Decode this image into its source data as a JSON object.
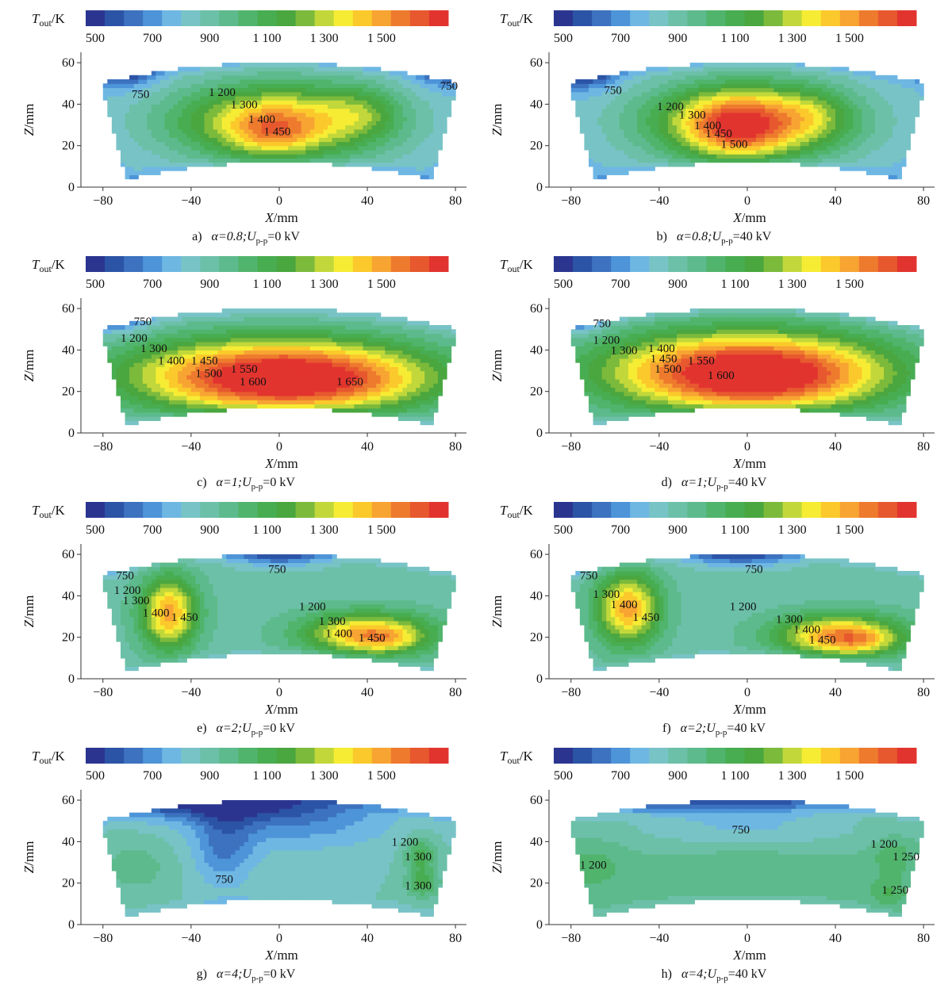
{
  "chart_data": [
    {
      "type": "heatmap",
      "panel": "a",
      "caption": {
        "letter": "a)",
        "alpha": "α=0.8;",
        "u": "U",
        "u_sub": "p-p",
        "value": "=0 kV"
      },
      "colorbar": {
        "label_T": "T",
        "label_sub": "out",
        "label_unit": "/K",
        "ticks": [
          "500",
          "700",
          "900",
          "1 100",
          "1 300",
          "1 500"
        ],
        "colors": [
          "#2b3590",
          "#2c54a6",
          "#3c72bf",
          "#4d94d8",
          "#6eb7e3",
          "#78c3c6",
          "#6cc0a8",
          "#5dba8c",
          "#51b46c",
          "#48ad51",
          "#4aa63f",
          "#7cba3c",
          "#c2d83a",
          "#f6ec34",
          "#fbc92b",
          "#f7a433",
          "#ee7a2e",
          "#e7582f",
          "#e2342f"
        ]
      },
      "xlabel": "X/mm",
      "ylabel": "Z/mm",
      "xticks": [
        "-80",
        "-40",
        "0",
        "40",
        "80"
      ],
      "yticks": [
        "0",
        "20",
        "40",
        "60"
      ],
      "xlim": [
        -90,
        85
      ],
      "ylim": [
        0,
        65
      ],
      "base_level": 4.0,
      "hot_spots": [
        {
          "cx": -70,
          "cz": 57,
          "sx": 10,
          "sz": 6,
          "amp": -3.8
        },
        {
          "cx": 72,
          "cz": 54,
          "sx": 8,
          "sz": 5,
          "amp": -1.5
        },
        {
          "cx": 0,
          "cz": 32,
          "sx": 36,
          "sz": 14,
          "amp": 10.0
        },
        {
          "cx": -3,
          "cz": 26,
          "sx": 14,
          "sz": 8,
          "amp": 3.5
        },
        {
          "cx": 38,
          "cz": 36,
          "sx": 12,
          "sz": 9,
          "amp": 2.5
        }
      ],
      "labels": [
        {
          "x": -67,
          "z": 43,
          "text": "750"
        },
        {
          "x": 73,
          "z": 47,
          "text": "750"
        },
        {
          "x": -32,
          "z": 44,
          "text": "1 200"
        },
        {
          "x": -22,
          "z": 38,
          "text": "1 300"
        },
        {
          "x": -14,
          "z": 31,
          "text": "1 400"
        },
        {
          "x": -7,
          "z": 25,
          "text": "1 450"
        }
      ]
    },
    {
      "type": "heatmap",
      "panel": "b",
      "caption": {
        "letter": "b)",
        "alpha": "α=0.8;",
        "u": "U",
        "u_sub": "p-p",
        "value": "=40 kV"
      },
      "colorbar": {
        "label_T": "T",
        "label_sub": "out",
        "label_unit": "/K",
        "ticks": [
          "500",
          "700",
          "900",
          "1 100",
          "1 300",
          "1 500"
        ],
        "colors": [
          "#2b3590",
          "#2c54a6",
          "#3c72bf",
          "#4d94d8",
          "#6eb7e3",
          "#78c3c6",
          "#6cc0a8",
          "#5dba8c",
          "#51b46c",
          "#48ad51",
          "#4aa63f",
          "#7cba3c",
          "#c2d83a",
          "#f6ec34",
          "#fbc92b",
          "#f7a433",
          "#ee7a2e",
          "#e7582f",
          "#e2342f"
        ]
      },
      "xlabel": "X/mm",
      "ylabel": "Z/mm",
      "xticks": [
        "-80",
        "-40",
        "0",
        "40",
        "80"
      ],
      "yticks": [
        "0",
        "20",
        "40",
        "60"
      ],
      "xlim": [
        -90,
        85
      ],
      "ylim": [
        0,
        65
      ],
      "base_level": 4.0,
      "hot_spots": [
        {
          "cx": -72,
          "cz": 56,
          "sx": 9,
          "sz": 6,
          "amp": -3.6
        },
        {
          "cx": 0,
          "cz": 32,
          "sx": 34,
          "sz": 14,
          "amp": 10.5
        },
        {
          "cx": -5,
          "cz": 28,
          "sx": 16,
          "sz": 11,
          "amp": 5.0
        },
        {
          "cx": 30,
          "cz": 35,
          "sx": 12,
          "sz": 9,
          "amp": 2.0
        }
      ],
      "labels": [
        {
          "x": -65,
          "z": 45,
          "text": "750"
        },
        {
          "x": -41,
          "z": 37,
          "text": "1 200"
        },
        {
          "x": -31,
          "z": 33,
          "text": "1 300"
        },
        {
          "x": -24,
          "z": 28,
          "text": "1 400"
        },
        {
          "x": -19,
          "z": 24,
          "text": "1 450"
        },
        {
          "x": -12,
          "z": 19,
          "text": "1 500"
        }
      ]
    },
    {
      "type": "heatmap",
      "panel": "c",
      "caption": {
        "letter": "c)",
        "alpha": "α=1;",
        "u": "U",
        "u_sub": "p-p",
        "value": "=0 kV"
      },
      "colorbar": {
        "label_T": "T",
        "label_sub": "out",
        "label_unit": "/K",
        "ticks": [
          "500",
          "700",
          "900",
          "1 100",
          "1 300",
          "1 500"
        ],
        "colors": [
          "#2b3590",
          "#2c54a6",
          "#3c72bf",
          "#4d94d8",
          "#6eb7e3",
          "#78c3c6",
          "#6cc0a8",
          "#5dba8c",
          "#51b46c",
          "#48ad51",
          "#4aa63f",
          "#7cba3c",
          "#c2d83a",
          "#f6ec34",
          "#fbc92b",
          "#f7a433",
          "#ee7a2e",
          "#e7582f",
          "#e2342f"
        ]
      },
      "xlabel": "X/mm",
      "ylabel": "Z/mm",
      "xticks": [
        "-80",
        "-40",
        "0",
        "40",
        "80"
      ],
      "yticks": [
        "0",
        "20",
        "40",
        "60"
      ],
      "xlim": [
        -90,
        85
      ],
      "ylim": [
        0,
        65
      ],
      "base_level": 4.5,
      "hot_spots": [
        {
          "cx": -72,
          "cz": 55,
          "sx": 8,
          "sz": 5,
          "amp": -2.5
        },
        {
          "cx": 0,
          "cz": 28,
          "sx": 52,
          "sz": 14,
          "amp": 13.5
        },
        {
          "cx": 10,
          "cz": 24,
          "sx": 38,
          "sz": 9,
          "amp": 3.0
        }
      ],
      "labels": [
        {
          "x": -66,
          "z": 52,
          "text": "750"
        },
        {
          "x": -72,
          "z": 44,
          "text": "1 200"
        },
        {
          "x": -63,
          "z": 39,
          "text": "1 300"
        },
        {
          "x": -55,
          "z": 33,
          "text": "1 400"
        },
        {
          "x": -40,
          "z": 33,
          "text": "1 450"
        },
        {
          "x": -38,
          "z": 27,
          "text": "1 500"
        },
        {
          "x": -22,
          "z": 29,
          "text": "1 550"
        },
        {
          "x": -18,
          "z": 23,
          "text": "1 600"
        },
        {
          "x": 26,
          "z": 23,
          "text": "1 650"
        }
      ]
    },
    {
      "type": "heatmap",
      "panel": "d",
      "caption": {
        "letter": "d)",
        "alpha": "α=1;",
        "u": "U",
        "u_sub": "p-p",
        "value": "=40 kV"
      },
      "colorbar": {
        "label_T": "T",
        "label_sub": "out",
        "label_unit": "/K",
        "ticks": [
          "500",
          "700",
          "900",
          "1 100",
          "1 300",
          "1 500"
        ],
        "colors": [
          "#2b3590",
          "#2c54a6",
          "#3c72bf",
          "#4d94d8",
          "#6eb7e3",
          "#78c3c6",
          "#6cc0a8",
          "#5dba8c",
          "#51b46c",
          "#48ad51",
          "#4aa63f",
          "#7cba3c",
          "#c2d83a",
          "#f6ec34",
          "#fbc92b",
          "#f7a433",
          "#ee7a2e",
          "#e7582f",
          "#e2342f"
        ]
      },
      "xlabel": "X/mm",
      "ylabel": "Z/mm",
      "xticks": [
        "-80",
        "-40",
        "0",
        "40",
        "80"
      ],
      "yticks": [
        "0",
        "20",
        "40",
        "60"
      ],
      "xlim": [
        -90,
        85
      ],
      "ylim": [
        0,
        65
      ],
      "base_level": 4.5,
      "hot_spots": [
        {
          "cx": -75,
          "cz": 55,
          "sx": 7,
          "sz": 5,
          "amp": -2.5
        },
        {
          "cx": 0,
          "cz": 30,
          "sx": 50,
          "sz": 15,
          "amp": 13.5
        },
        {
          "cx": 5,
          "cz": 26,
          "sx": 34,
          "sz": 10,
          "amp": 3.0
        }
      ],
      "labels": [
        {
          "x": -70,
          "z": 51,
          "text": "750"
        },
        {
          "x": -70,
          "z": 43,
          "text": "1 200"
        },
        {
          "x": -62,
          "z": 38,
          "text": "1 300"
        },
        {
          "x": -45,
          "z": 39,
          "text": "1 400"
        },
        {
          "x": -44,
          "z": 34,
          "text": "1 450"
        },
        {
          "x": -42,
          "z": 29,
          "text": "1 500"
        },
        {
          "x": -27,
          "z": 33,
          "text": "1 550"
        },
        {
          "x": -18,
          "z": 26,
          "text": "1 600"
        }
      ]
    },
    {
      "type": "heatmap",
      "panel": "e",
      "caption": {
        "letter": "e)",
        "alpha": "α=2;",
        "u": "U",
        "u_sub": "p-p",
        "value": "=0 kV"
      },
      "colorbar": {
        "label_T": "T",
        "label_sub": "out",
        "label_unit": "/K",
        "ticks": [
          "500",
          "700",
          "900",
          "1 100",
          "1 300",
          "1 500"
        ],
        "colors": [
          "#2b3590",
          "#2c54a6",
          "#3c72bf",
          "#4d94d8",
          "#6eb7e3",
          "#78c3c6",
          "#6cc0a8",
          "#5dba8c",
          "#51b46c",
          "#48ad51",
          "#4aa63f",
          "#7cba3c",
          "#c2d83a",
          "#f6ec34",
          "#fbc92b",
          "#f7a433",
          "#ee7a2e",
          "#e7582f",
          "#e2342f"
        ]
      },
      "xlabel": "X/mm",
      "ylabel": "Z/mm",
      "xticks": [
        "-80",
        "-40",
        "0",
        "40",
        "80"
      ],
      "yticks": [
        "0",
        "20",
        "40",
        "60"
      ],
      "xlim": [
        -90,
        85
      ],
      "ylim": [
        0,
        65
      ],
      "base_level": 6.0,
      "hot_spots": [
        {
          "cx": 0,
          "cz": 62,
          "sx": 16,
          "sz": 5,
          "amp": -5.5
        },
        {
          "cx": -78,
          "cz": 55,
          "sx": 6,
          "sz": 4,
          "amp": -2.0
        },
        {
          "cx": -50,
          "cz": 32,
          "sx": 9,
          "sz": 12,
          "amp": 9.0
        },
        {
          "cx": 40,
          "cz": 22,
          "sx": 20,
          "sz": 7,
          "amp": 9.0
        },
        {
          "cx": 50,
          "cz": 18,
          "sx": 10,
          "sz": 4,
          "amp": 2.0
        }
      ],
      "labels": [
        {
          "x": -74,
          "z": 48,
          "text": "750"
        },
        {
          "x": -5,
          "z": 51,
          "text": "750"
        },
        {
          "x": -75,
          "z": 41,
          "text": "1 200"
        },
        {
          "x": -71,
          "z": 36,
          "text": "1 300"
        },
        {
          "x": -62,
          "z": 30,
          "text": "1 400"
        },
        {
          "x": -49,
          "z": 28,
          "text": "1 450"
        },
        {
          "x": 9,
          "z": 33,
          "text": "1 200"
        },
        {
          "x": 18,
          "z": 26,
          "text": "1 300"
        },
        {
          "x": 21,
          "z": 20,
          "text": "1 400"
        },
        {
          "x": 36,
          "z": 18,
          "text": "1 450"
        }
      ]
    },
    {
      "type": "heatmap",
      "panel": "f",
      "caption": {
        "letter": "f)",
        "alpha": "α=2;",
        "u": "U",
        "u_sub": "p-p",
        "value": "=40 kV"
      },
      "colorbar": {
        "label_T": "T",
        "label_sub": "out",
        "label_unit": "/K",
        "ticks": [
          "500",
          "700",
          "900",
          "1 100",
          "1 300",
          "1 500"
        ],
        "colors": [
          "#2b3590",
          "#2c54a6",
          "#3c72bf",
          "#4d94d8",
          "#6eb7e3",
          "#78c3c6",
          "#6cc0a8",
          "#5dba8c",
          "#51b46c",
          "#48ad51",
          "#4aa63f",
          "#7cba3c",
          "#c2d83a",
          "#f6ec34",
          "#fbc92b",
          "#f7a433",
          "#ee7a2e",
          "#e7582f",
          "#e2342f"
        ]
      },
      "xlabel": "X/mm",
      "ylabel": "Z/mm",
      "xticks": [
        "-80",
        "-40",
        "0",
        "40",
        "80"
      ],
      "yticks": [
        "0",
        "20",
        "40",
        "60"
      ],
      "xlim": [
        -90,
        85
      ],
      "ylim": [
        0,
        65
      ],
      "base_level": 6.0,
      "hot_spots": [
        {
          "cx": -3,
          "cz": 62,
          "sx": 18,
          "sz": 5,
          "amp": -5.5
        },
        {
          "cx": -80,
          "cz": 54,
          "sx": 5,
          "sz": 4,
          "amp": -2.0
        },
        {
          "cx": -54,
          "cz": 34,
          "sx": 10,
          "sz": 12,
          "amp": 9.0
        },
        {
          "cx": 42,
          "cz": 21,
          "sx": 20,
          "sz": 7,
          "amp": 9.5
        },
        {
          "cx": 52,
          "cz": 18,
          "sx": 10,
          "sz": 4,
          "amp": 2.0
        }
      ],
      "labels": [
        {
          "x": -76,
          "z": 48,
          "text": "750"
        },
        {
          "x": -1,
          "z": 51,
          "text": "750"
        },
        {
          "x": -70,
          "z": 39,
          "text": "1 300"
        },
        {
          "x": -62,
          "z": 34,
          "text": "1 400"
        },
        {
          "x": -52,
          "z": 28,
          "text": "1 450"
        },
        {
          "x": -8,
          "z": 33,
          "text": "1 200"
        },
        {
          "x": 13,
          "z": 27,
          "text": "1 300"
        },
        {
          "x": 21,
          "z": 22,
          "text": "1 400"
        },
        {
          "x": 28,
          "z": 17,
          "text": "1 450"
        }
      ]
    },
    {
      "type": "heatmap",
      "panel": "g",
      "caption": {
        "letter": "g)",
        "alpha": "α=4;",
        "u": "U",
        "u_sub": "p-p",
        "value": "=0 kV"
      },
      "colorbar": {
        "label_T": "T",
        "label_sub": "out",
        "label_unit": "/K",
        "ticks": [
          "500",
          "700",
          "900",
          "1 100",
          "1 300",
          "1 500"
        ],
        "colors": [
          "#2b3590",
          "#2c54a6",
          "#3c72bf",
          "#4d94d8",
          "#6eb7e3",
          "#78c3c6",
          "#6cc0a8",
          "#5dba8c",
          "#51b46c",
          "#48ad51",
          "#4aa63f",
          "#7cba3c",
          "#c2d83a",
          "#f6ec34",
          "#fbc92b",
          "#f7a433",
          "#ee7a2e",
          "#e7582f",
          "#e2342f"
        ]
      },
      "xlabel": "X/mm",
      "ylabel": "Z/mm",
      "xticks": [
        "-80",
        "-40",
        "0",
        "40",
        "80"
      ],
      "yticks": [
        "0",
        "20",
        "40",
        "60"
      ],
      "xlim": [
        -90,
        85
      ],
      "ylim": [
        0,
        65
      ],
      "base_level": 5.5,
      "hot_spots": [
        {
          "cx": -20,
          "cz": 58,
          "sx": 40,
          "sz": 6,
          "amp": -5.0
        },
        {
          "cx": -25,
          "cz": 38,
          "sx": 10,
          "sz": 14,
          "amp": -3.0
        },
        {
          "cx": 10,
          "cz": 46,
          "sx": 30,
          "sz": 8,
          "amp": -2.0
        },
        {
          "cx": 64,
          "cz": 34,
          "sx": 5,
          "sz": 6,
          "amp": 3.5
        },
        {
          "cx": 65,
          "cz": 20,
          "sx": 5,
          "sz": 5,
          "amp": 3.5
        },
        {
          "cx": -65,
          "cz": 28,
          "sx": 12,
          "sz": 10,
          "amp": 1.5
        }
      ],
      "labels": [
        {
          "x": -29,
          "z": 20,
          "text": "750"
        },
        {
          "x": 51,
          "z": 38,
          "text": "1 200"
        },
        {
          "x": 57,
          "z": 31,
          "text": "1 300"
        },
        {
          "x": 57,
          "z": 17,
          "text": "1 300"
        }
      ]
    },
    {
      "type": "heatmap",
      "panel": "h",
      "caption": {
        "letter": "h)",
        "alpha": "α=4;",
        "u": "U",
        "u_sub": "p-p",
        "value": "=40 kV"
      },
      "colorbar": {
        "label_T": "T",
        "label_sub": "out",
        "label_unit": "/K",
        "ticks": [
          "500",
          "700",
          "900",
          "1 100",
          "1 300",
          "1 500"
        ],
        "colors": [
          "#2b3590",
          "#2c54a6",
          "#3c72bf",
          "#4d94d8",
          "#6eb7e3",
          "#78c3c6",
          "#6cc0a8",
          "#5dba8c",
          "#51b46c",
          "#48ad51",
          "#4aa63f",
          "#7cba3c",
          "#c2d83a",
          "#f6ec34",
          "#fbc92b",
          "#f7a433",
          "#ee7a2e",
          "#e7582f",
          "#e2342f"
        ]
      },
      "xlabel": "X/mm",
      "ylabel": "Z/mm",
      "xticks": [
        "-80",
        "-40",
        "0",
        "40",
        "80"
      ],
      "yticks": [
        "0",
        "20",
        "40",
        "60"
      ],
      "xlim": [
        -90,
        85
      ],
      "ylim": [
        0,
        65
      ],
      "base_level": 6.5,
      "hot_spots": [
        {
          "cx": -10,
          "cz": 60,
          "sx": 45,
          "sz": 5,
          "amp": -5.0
        },
        {
          "cx": 0,
          "cz": 46,
          "sx": 40,
          "sz": 6,
          "amp": -2.0
        },
        {
          "cx": 0,
          "cz": 24,
          "sx": 30,
          "sz": 8,
          "amp": 1.0
        },
        {
          "cx": -70,
          "cz": 28,
          "sx": 10,
          "sz": 8,
          "amp": 1.5
        },
        {
          "cx": 66,
          "cz": 33,
          "sx": 6,
          "sz": 6,
          "amp": 2.0
        },
        {
          "cx": 64,
          "cz": 16,
          "sx": 6,
          "sz": 5,
          "amp": 2.0
        }
      ],
      "labels": [
        {
          "x": -7,
          "z": 44,
          "text": "750"
        },
        {
          "x": -76,
          "z": 27,
          "text": "1 200"
        },
        {
          "x": 56,
          "z": 37,
          "text": "1 200"
        },
        {
          "x": 66,
          "z": 31,
          "text": "1 250"
        },
        {
          "x": 61,
          "z": 15,
          "text": "1 250"
        }
      ]
    }
  ]
}
